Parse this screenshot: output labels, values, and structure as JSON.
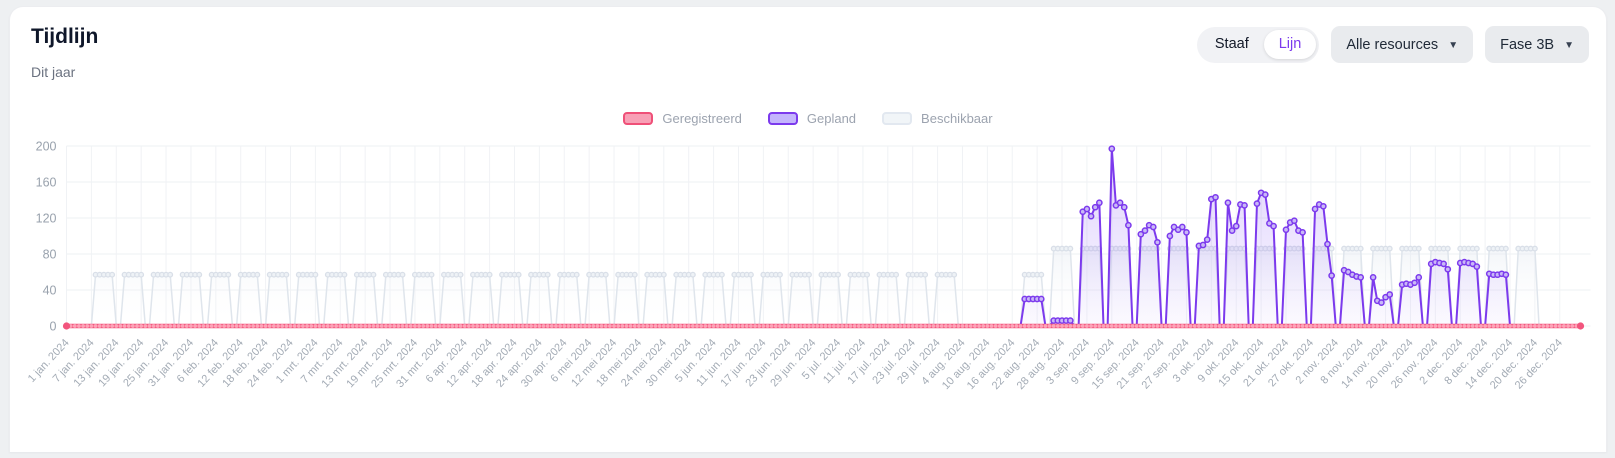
{
  "header": {
    "title": "Tijdlijn",
    "subtitle": "Dit jaar"
  },
  "controls": {
    "view_toggle": {
      "options": [
        "Staaf",
        "Lijn"
      ],
      "selected": "Lijn"
    },
    "resources_dropdown": {
      "value": "Alle resources"
    },
    "phase_dropdown": {
      "value": "Fase 3B"
    }
  },
  "icons": {
    "chevron_down": "▼"
  },
  "legend": {
    "items": [
      {
        "id": "geregistreerd",
        "label": "Geregistreerd",
        "fill": "#f8a0b6",
        "border": "#ef5078"
      },
      {
        "id": "gepland",
        "label": "Gepland",
        "fill": "#c4b5fd",
        "border": "#7c3aed"
      },
      {
        "id": "beschikbaar",
        "label": "Beschikbaar",
        "fill": "#f1f5f8",
        "border": "#e2e8f0"
      }
    ]
  },
  "chart_data": {
    "type": "area",
    "x_unit": "day",
    "x_start": "1 jan. 2024",
    "x_end": "31 dec. 2024",
    "x_days": 366,
    "weekend_value": 0,
    "ylim": [
      0,
      200
    ],
    "y_ticks": [
      0,
      40,
      80,
      120,
      160,
      200
    ],
    "grid": true,
    "legend_position": "top-center",
    "x_tick_interval_days": 6,
    "x_tick_labels": [
      "1 jan. 2024",
      "7 jan. 2024",
      "13 jan. 2024",
      "19 jan. 2024",
      "25 jan. 2024",
      "31 jan. 2024",
      "6 feb. 2024",
      "12 feb. 2024",
      "18 feb. 2024",
      "24 feb. 2024",
      "1 mrt. 2024",
      "7 mrt. 2024",
      "13 mrt. 2024",
      "19 mrt. 2024",
      "25 mrt. 2024",
      "31 mrt. 2024",
      "6 apr. 2024",
      "12 apr. 2024",
      "18 apr. 2024",
      "24 apr. 2024",
      "30 apr. 2024",
      "6 mei 2024",
      "12 mei 2024",
      "18 mei 2024",
      "24 mei 2024",
      "30 mei 2024",
      "5 jun. 2024",
      "11 jun. 2024",
      "17 jun. 2024",
      "23 jun. 2024",
      "29 jun. 2024",
      "5 jul. 2024",
      "11 jul. 2024",
      "17 jul. 2024",
      "23 jul. 2024",
      "29 jul. 2024",
      "4 aug. 2024",
      "10 aug. 2024",
      "16 aug. 2024",
      "22 aug. 2024",
      "28 aug. 2024",
      "3 sep. 2024",
      "9 sep. 2024",
      "15 sep. 2024",
      "21 sep. 2024",
      "27 sep. 2024",
      "3 okt. 2024",
      "9 okt. 2024",
      "15 okt. 2024",
      "21 okt. 2024",
      "27 okt. 2024",
      "2 nov. 2024",
      "8 nov. 2024",
      "14 nov. 2024",
      "20 nov. 2024",
      "26 nov. 2024",
      "2 dec. 2024",
      "8 dec. 2024",
      "14 dec. 2024",
      "20 dec. 2024",
      "26 dec. 2024"
    ],
    "series": [
      {
        "id": "beschikbaar",
        "label": "Beschikbaar",
        "stroke": "#dfe5ec",
        "marker_fill": "#eef2f6",
        "marker_stroke": "#d9dfe8",
        "area_from": "rgba(226,232,240,0.42)",
        "area_to": "rgba(255,255,255,0)",
        "markers": "positive",
        "values_source": "weeks.beschikbaar"
      },
      {
        "id": "gepland",
        "label": "Gepland",
        "stroke": "#7c3aed",
        "marker_fill": "#c9b8f7",
        "marker_stroke": "#7c3aed",
        "area_from": "rgba(139,92,246,0.28)",
        "area_to": "rgba(139,92,246,0.03)",
        "markers": "positive",
        "values_source": "weeks.gepland"
      },
      {
        "id": "geregistreerd",
        "label": "Geregistreerd",
        "stroke": "#f2557d",
        "marker_fill": "#fda4b8",
        "marker_stroke": "none",
        "markers": "all",
        "value_all_days": 0
      }
    ],
    "weeks": [
      {
        "start": "1 jan",
        "beschikbaar": 0,
        "gepland": 0
      },
      {
        "start": "8 jan",
        "beschikbaar": 57,
        "gepland": 0
      },
      {
        "start": "15 jan",
        "beschikbaar": 57,
        "gepland": 0
      },
      {
        "start": "22 jan",
        "beschikbaar": 57,
        "gepland": 0
      },
      {
        "start": "29 jan",
        "beschikbaar": 57,
        "gepland": 0
      },
      {
        "start": "5 feb",
        "beschikbaar": 57,
        "gepland": 0
      },
      {
        "start": "12 feb",
        "beschikbaar": 57,
        "gepland": 0
      },
      {
        "start": "19 feb",
        "beschikbaar": 57,
        "gepland": 0
      },
      {
        "start": "26 feb",
        "beschikbaar": 57,
        "gepland": 0
      },
      {
        "start": "4 mrt",
        "beschikbaar": 57,
        "gepland": 0
      },
      {
        "start": "11 mrt",
        "beschikbaar": 57,
        "gepland": 0
      },
      {
        "start": "18 mrt",
        "beschikbaar": 57,
        "gepland": 0
      },
      {
        "start": "25 mrt",
        "beschikbaar": 57,
        "gepland": 0
      },
      {
        "start": "1 apr",
        "beschikbaar": 57,
        "gepland": 0
      },
      {
        "start": "8 apr",
        "beschikbaar": 57,
        "gepland": 0
      },
      {
        "start": "15 apr",
        "beschikbaar": 57,
        "gepland": 0
      },
      {
        "start": "22 apr",
        "beschikbaar": 57,
        "gepland": 0
      },
      {
        "start": "29 apr",
        "beschikbaar": 57,
        "gepland": 0
      },
      {
        "start": "6 mei",
        "beschikbaar": 57,
        "gepland": 0
      },
      {
        "start": "13 mei",
        "beschikbaar": 57,
        "gepland": 0
      },
      {
        "start": "20 mei",
        "beschikbaar": 57,
        "gepland": 0
      },
      {
        "start": "27 mei",
        "beschikbaar": 57,
        "gepland": 0
      },
      {
        "start": "3 jun",
        "beschikbaar": 57,
        "gepland": 0
      },
      {
        "start": "10 jun",
        "beschikbaar": 57,
        "gepland": 0
      },
      {
        "start": "17 jun",
        "beschikbaar": 57,
        "gepland": 0
      },
      {
        "start": "24 jun",
        "beschikbaar": 57,
        "gepland": 0
      },
      {
        "start": "1 jul",
        "beschikbaar": 57,
        "gepland": 0
      },
      {
        "start": "8 jul",
        "beschikbaar": 57,
        "gepland": 0
      },
      {
        "start": "15 jul",
        "beschikbaar": 57,
        "gepland": 0
      },
      {
        "start": "22 jul",
        "beschikbaar": 57,
        "gepland": 0
      },
      {
        "start": "29 jul",
        "beschikbaar": 57,
        "gepland": 0
      },
      {
        "start": "5 aug",
        "beschikbaar": 0,
        "gepland": 0
      },
      {
        "start": "12 aug",
        "beschikbaar": 0,
        "gepland": 0
      },
      {
        "start": "19 aug",
        "beschikbaar": 57,
        "gepland": [
          30,
          30,
          30,
          30,
          30
        ]
      },
      {
        "start": "26 aug",
        "beschikbaar": 86,
        "gepland": [
          6,
          6,
          6,
          6,
          6
        ]
      },
      {
        "start": "2 sep",
        "beschikbaar": 86,
        "gepland": [
          127,
          130,
          122,
          132,
          137
        ]
      },
      {
        "start": "9 sep",
        "beschikbaar": 86,
        "gepland": [
          197,
          134,
          137,
          132,
          112
        ]
      },
      {
        "start": "16 sep",
        "beschikbaar": 86,
        "gepland": [
          102,
          106,
          112,
          110,
          93
        ]
      },
      {
        "start": "23 sep",
        "beschikbaar": 86,
        "gepland": [
          100,
          110,
          107,
          110,
          104
        ]
      },
      {
        "start": "30 sep",
        "beschikbaar": 86,
        "gepland": [
          89,
          90,
          96,
          141,
          143
        ]
      },
      {
        "start": "7 okt",
        "beschikbaar": 86,
        "gepland": [
          137,
          106,
          111,
          135,
          134
        ]
      },
      {
        "start": "14 okt",
        "beschikbaar": 86,
        "gepland": [
          136,
          148,
          146,
          114,
          111
        ]
      },
      {
        "start": "21 okt",
        "beschikbaar": 86,
        "gepland": [
          107,
          115,
          117,
          106,
          104
        ]
      },
      {
        "start": "28 okt",
        "beschikbaar": 86,
        "gepland": [
          130,
          135,
          133,
          91,
          56
        ]
      },
      {
        "start": "4 nov",
        "beschikbaar": 86,
        "gepland": [
          62,
          60,
          57,
          55,
          54
        ]
      },
      {
        "start": "11 nov",
        "beschikbaar": 86,
        "gepland": [
          54,
          28,
          26,
          32,
          35
        ]
      },
      {
        "start": "18 nov",
        "beschikbaar": 86,
        "gepland": [
          46,
          47,
          46,
          48,
          54
        ]
      },
      {
        "start": "25 nov",
        "beschikbaar": 86,
        "gepland": [
          69,
          71,
          70,
          69,
          63
        ]
      },
      {
        "start": "2 dec",
        "beschikbaar": 86,
        "gepland": [
          70,
          71,
          70,
          69,
          66
        ]
      },
      {
        "start": "9 dec",
        "beschikbaar": 86,
        "gepland": [
          58,
          57,
          57,
          58,
          57
        ]
      },
      {
        "start": "16 dec",
        "beschikbaar": 86,
        "gepland": 0
      },
      {
        "start": "23 dec",
        "beschikbaar": 0,
        "gepland": 0
      },
      {
        "start": "30 dec",
        "beschikbaar": 0,
        "gepland": 0
      }
    ]
  }
}
